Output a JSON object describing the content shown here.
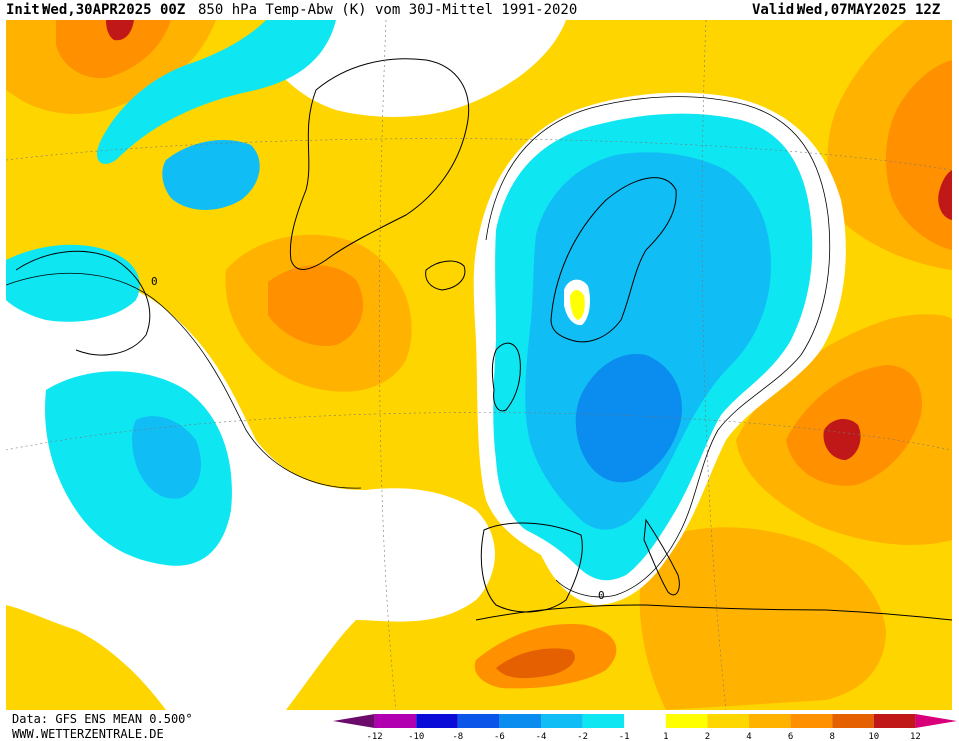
{
  "header": {
    "init_label": "Init:",
    "init_value": "Wed,30APR2025 00Z",
    "title": "850 hPa Temp-Abw (K) vom 30J-Mittel 1991-2020",
    "valid_label": "Valid:",
    "valid_value": "Wed,07MAY2025 12Z"
  },
  "footer": {
    "data_source": "Data: GFS ENS MEAN 0.500°",
    "url": "WWW.WETTERZENTRALE.DE"
  },
  "colorbar": {
    "colors": [
      "#6b0b6b",
      "#b000b0",
      "#0b0bd8",
      "#0b56e8",
      "#0b8df0",
      "#10bef5",
      "#0ee6f2",
      "#ffffff",
      "#ffff00",
      "#ffd700",
      "#ffb300",
      "#ff9000",
      "#e56000",
      "#c01818",
      "#d8007a"
    ],
    "tick_labels": [
      "-12",
      "-10",
      "-8",
      "-6",
      "-4",
      "-2",
      "-1",
      "1",
      "2",
      "4",
      "6",
      "8",
      "10",
      "12"
    ]
  },
  "map": {
    "background": "#ffd500",
    "anomaly_colors": {
      "strong_cold": "#0b8df0",
      "cold": "#10bef5",
      "weak_cold": "#0ee6f2",
      "neutral": "#ffffff",
      "weak_warm": "#ffff00",
      "warm": "#ffd700",
      "warmer": "#ffb300",
      "hot": "#ff9000",
      "very_hot": "#e56000",
      "extreme": "#c01818"
    },
    "zero_label": "0"
  }
}
